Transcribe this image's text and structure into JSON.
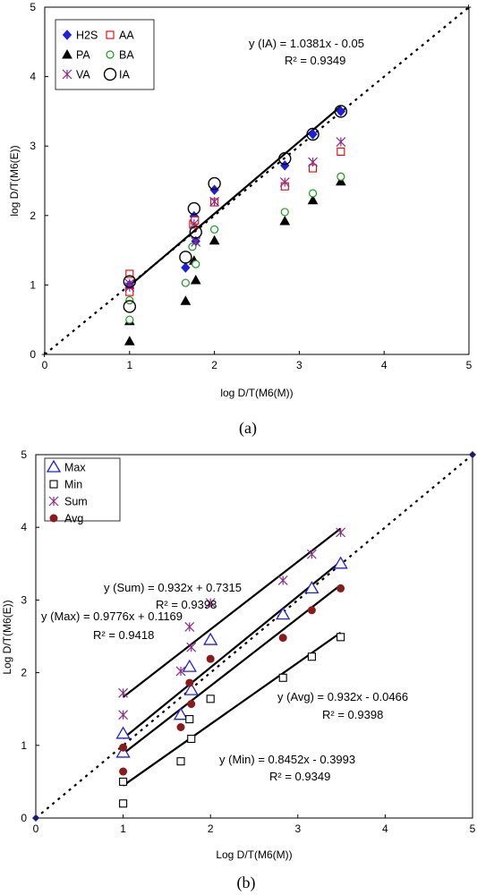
{
  "chart_data": [
    {
      "type": "scatter",
      "panel_label": "(a)",
      "xlabel": "log D/T(M6(M))",
      "ylabel": "log D/T(M6(E))",
      "xlim": [
        0,
        5
      ],
      "ylim": [
        0,
        5
      ],
      "xticks": [
        "0",
        "1",
        "2",
        "3",
        "4",
        "5"
      ],
      "yticks": [
        "0",
        "1",
        "2",
        "3",
        "4",
        "5"
      ],
      "grid": false,
      "legend_position": "top-left",
      "series": [
        {
          "name": "H2S",
          "marker": "diamond-filled",
          "color": "#1f1fe0",
          "x": [
            1.0,
            1.0,
            1.66,
            1.76,
            1.78,
            2.0,
            2.83,
            3.16,
            3.49
          ],
          "y": [
            0.95,
            1.0,
            1.25,
            1.99,
            1.63,
            2.37,
            2.72,
            3.17,
            3.5
          ]
        },
        {
          "name": "AA",
          "marker": "square-open",
          "color": "#e00000",
          "x": [
            1.0,
            1.0,
            1.75,
            1.77,
            2.0,
            2.83,
            3.16,
            3.49
          ],
          "y": [
            1.16,
            0.9,
            1.87,
            1.93,
            2.19,
            2.42,
            2.68,
            2.92
          ]
        },
        {
          "name": "PA",
          "marker": "triangle-filled",
          "color": "#000000",
          "x": [
            1.0,
            1.0,
            1.66,
            1.76,
            1.78,
            2.0,
            2.83,
            3.16,
            3.49
          ],
          "y": [
            0.19,
            0.48,
            0.77,
            1.35,
            1.07,
            1.64,
            1.92,
            2.22,
            2.49
          ]
        },
        {
          "name": "BA",
          "marker": "circle-open",
          "color": "#1a9a1a",
          "x": [
            1.0,
            1.0,
            1.66,
            1.74,
            1.78,
            2.0,
            2.83,
            3.16,
            3.49
          ],
          "y": [
            0.5,
            0.78,
            1.03,
            1.55,
            1.3,
            1.8,
            2.05,
            2.32,
            2.56
          ]
        },
        {
          "name": "VA",
          "marker": "star",
          "color": "#8a2a8a",
          "x": [
            1.0,
            1.0,
            1.76,
            1.78,
            2.0,
            2.83,
            3.16,
            3.49
          ],
          "y": [
            1.02,
            0.97,
            1.88,
            1.62,
            2.2,
            2.48,
            2.77,
            3.06
          ]
        },
        {
          "name": "IA",
          "marker": "circle-open-large",
          "color": "#000000",
          "x": [
            1.0,
            1.0,
            1.66,
            1.76,
            1.78,
            2.0,
            2.83,
            3.16,
            3.49
          ],
          "y": [
            1.05,
            0.69,
            1.4,
            2.1,
            1.76,
            2.46,
            2.82,
            3.17,
            3.5
          ]
        }
      ],
      "lines": [
        {
          "kind": "identity",
          "style": "dotted",
          "x": [
            0,
            5
          ],
          "y": [
            0,
            5
          ]
        },
        {
          "kind": "regression",
          "series": "IA",
          "slope": 1.0381,
          "intercept": -0.05,
          "x": [
            1.0,
            3.49
          ]
        }
      ],
      "annotations": [
        {
          "text": "y (IA) = 1.0381x -  0.05",
          "near": "top-right"
        },
        {
          "text": "R² = 0.9349",
          "near": "top-right"
        }
      ]
    },
    {
      "type": "scatter",
      "panel_label": "(b)",
      "xlabel": "Log D/T(M6(M))",
      "ylabel": "Log D/T(M6(E))",
      "xlim": [
        0,
        5
      ],
      "ylim": [
        0,
        5
      ],
      "xticks": [
        "0",
        "1",
        "2",
        "3",
        "4",
        "5"
      ],
      "yticks": [
        "0",
        "1",
        "2",
        "3",
        "4",
        "5"
      ],
      "grid": false,
      "legend_position": "top-left",
      "series": [
        {
          "name": "Max",
          "marker": "triangle-open",
          "color": "#1f1fe0",
          "x": [
            1.0,
            1.0,
            1.66,
            1.76,
            1.78,
            2.0,
            2.83,
            3.16,
            3.49
          ],
          "y": [
            1.16,
            0.9,
            1.42,
            2.08,
            1.76,
            2.45,
            2.8,
            3.16,
            3.5
          ]
        },
        {
          "name": "Min",
          "marker": "square-open",
          "color": "#000000",
          "x": [
            1.0,
            1.0,
            1.66,
            1.76,
            1.78,
            2.0,
            2.83,
            3.16,
            3.49
          ],
          "y": [
            0.2,
            0.5,
            0.78,
            1.36,
            1.09,
            1.64,
            1.93,
            2.22,
            2.49
          ]
        },
        {
          "name": "Sum",
          "marker": "star",
          "color": "#8a2a8a",
          "x": [
            1.0,
            1.0,
            1.66,
            1.76,
            1.78,
            2.0,
            2.83,
            3.16,
            3.49
          ],
          "y": [
            1.72,
            1.42,
            2.02,
            2.63,
            2.35,
            2.96,
            3.27,
            3.63,
            3.93
          ]
        },
        {
          "name": "Avg",
          "marker": "circle-filled",
          "color": "#8b1a1a",
          "x": [
            1.0,
            1.0,
            1.66,
            1.76,
            1.78,
            2.0,
            2.83,
            3.16,
            3.49
          ],
          "y": [
            0.97,
            0.64,
            1.25,
            1.86,
            1.57,
            2.19,
            2.48,
            2.86,
            3.16
          ]
        }
      ],
      "lines": [
        {
          "kind": "identity",
          "style": "dotted",
          "x": [
            0,
            5
          ],
          "y": [
            0,
            5
          ]
        },
        {
          "kind": "regression",
          "series": "Sum",
          "slope": 0.932,
          "intercept": 0.7315,
          "x": [
            1.0,
            3.49
          ]
        },
        {
          "kind": "regression",
          "series": "Max",
          "slope": 0.9776,
          "intercept": 0.1169,
          "x": [
            1.0,
            3.49
          ]
        },
        {
          "kind": "regression",
          "series": "Avg",
          "slope": 0.932,
          "intercept": -0.0466,
          "x": [
            1.0,
            3.49
          ]
        },
        {
          "kind": "regression",
          "series": "Min",
          "slope": 0.8452,
          "intercept": -0.3993,
          "x": [
            1.0,
            3.49
          ]
        }
      ],
      "annotations": [
        {
          "text": "y (Sum) = 0.932x + 0.7315",
          "near": "upper-left"
        },
        {
          "text": "R² = 0.9398",
          "near": "upper-left"
        },
        {
          "text": "y (Max) = 0.9776x + 0.1169",
          "near": "left"
        },
        {
          "text": "R² = 0.9418",
          "near": "left"
        },
        {
          "text": "y (Avg) = 0.932x -  0.0466",
          "near": "right"
        },
        {
          "text": "R² = 0.9398",
          "near": "right"
        },
        {
          "text": "y (Min) = 0.8452x -  0.3993",
          "near": "lower-right"
        },
        {
          "text": "R² = 0.9349",
          "near": "lower-right"
        }
      ]
    }
  ]
}
